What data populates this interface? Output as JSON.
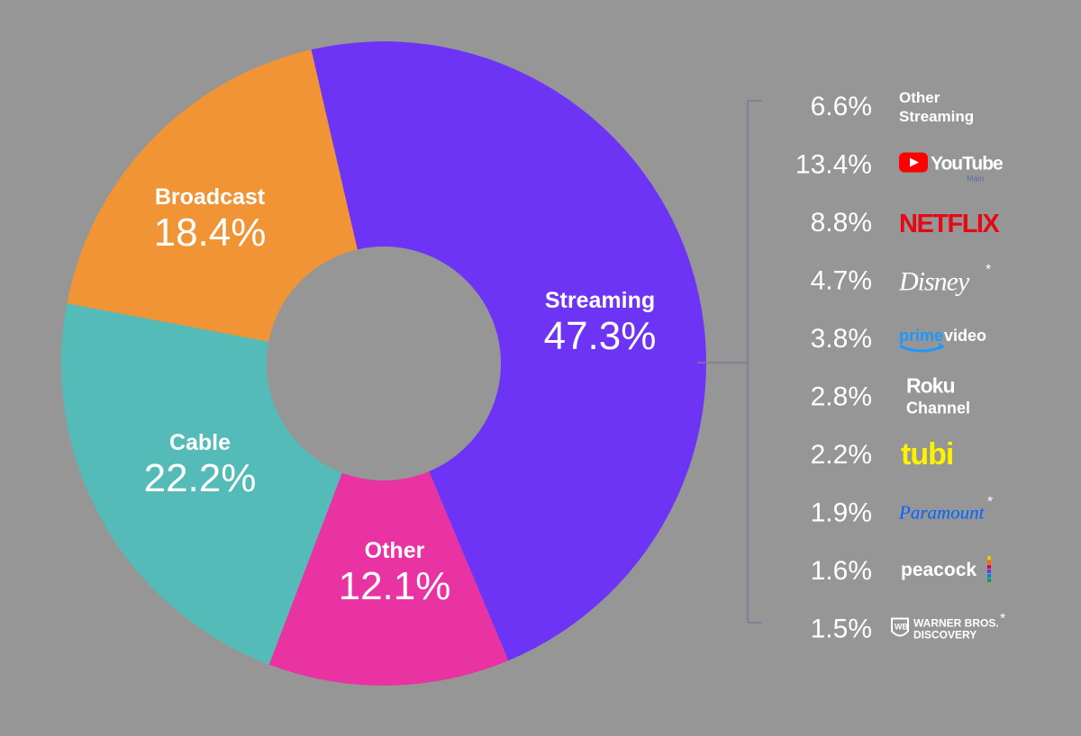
{
  "chart_data": {
    "type": "pie",
    "style": "donut",
    "slices": [
      {
        "label": "Streaming",
        "value": 47.3,
        "value_text": "47.3%",
        "color": "#6e34f5"
      },
      {
        "label": "Other",
        "value": 12.1,
        "value_text": "12.1%",
        "color": "#ea33a3"
      },
      {
        "label": "Cable",
        "value": 22.2,
        "value_text": "22.2%",
        "color": "#55bbb8"
      },
      {
        "label": "Broadcast",
        "value": 18.4,
        "value_text": "18.4%",
        "color": "#f09436"
      }
    ],
    "breakdown_of": "Streaming",
    "breakdown": [
      {
        "value": 6.6,
        "value_text": "6.6%",
        "name": "Other Streaming",
        "name_line1": "Other",
        "name_line2": "Streaming",
        "icon": "text-label"
      },
      {
        "value": 13.4,
        "value_text": "13.4%",
        "name": "YouTube",
        "sublabel": "Main",
        "icon": "youtube-logo",
        "color": "#ff0000"
      },
      {
        "value": 8.8,
        "value_text": "8.8%",
        "name": "NETFLIX",
        "icon": "netflix-logo",
        "color": "#e50914"
      },
      {
        "value": 4.7,
        "value_text": "4.7%",
        "name": "Disney",
        "asterisk": "*",
        "icon": "disney-logo"
      },
      {
        "value": 3.8,
        "value_text": "3.8%",
        "name": "prime video",
        "icon": "prime-video-logo",
        "color": "#1a98ff"
      },
      {
        "value": 2.8,
        "value_text": "2.8%",
        "name": "Roku Channel",
        "name_line1": "Roku",
        "name_line2": "Channel",
        "icon": "roku-channel-logo"
      },
      {
        "value": 2.2,
        "value_text": "2.2%",
        "name": "tubi",
        "icon": "tubi-logo",
        "color": "#fff200"
      },
      {
        "value": 1.9,
        "value_text": "1.9%",
        "name": "Paramount",
        "asterisk": "*",
        "icon": "paramount-logo",
        "color": "#0064ff"
      },
      {
        "value": 1.6,
        "value_text": "1.6%",
        "name": "peacock",
        "icon": "peacock-logo"
      },
      {
        "value": 1.5,
        "value_text": "1.5%",
        "name": "Warner Bros. Discovery",
        "name_line1": "WARNER BROS.",
        "name_line2": "DISCOVERY",
        "asterisk": "*",
        "icon": "warner-bros-discovery-logo"
      }
    ]
  },
  "colors": {
    "background": "#969696",
    "hole": "#969696",
    "bracket": "#7a7a9a",
    "text": "#ffffff"
  }
}
